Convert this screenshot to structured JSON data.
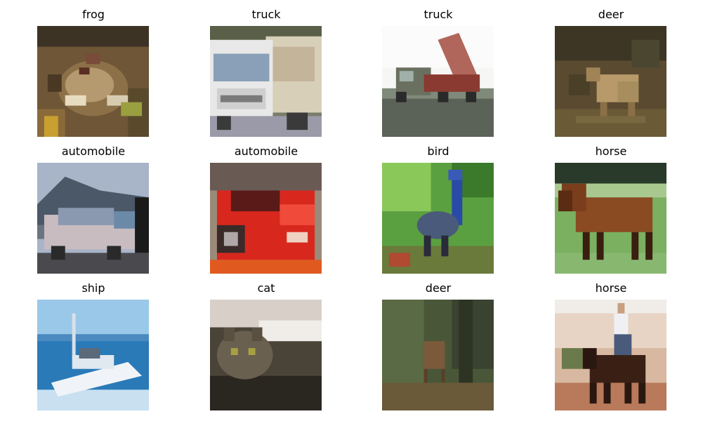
{
  "grid": {
    "images": [
      {
        "label": "frog",
        "subject": "frog"
      },
      {
        "label": "truck",
        "subject": "truck-front"
      },
      {
        "label": "truck",
        "subject": "dump-truck"
      },
      {
        "label": "deer",
        "subject": "deer"
      },
      {
        "label": "automobile",
        "subject": "silver-car"
      },
      {
        "label": "automobile",
        "subject": "red-sports-car"
      },
      {
        "label": "bird",
        "subject": "blue-bird"
      },
      {
        "label": "horse",
        "subject": "brown-horse"
      },
      {
        "label": "ship",
        "subject": "white-boat"
      },
      {
        "label": "cat",
        "subject": "gray-cat"
      },
      {
        "label": "deer",
        "subject": "deer-in-forest"
      },
      {
        "label": "horse",
        "subject": "rider-on-horse"
      }
    ]
  }
}
